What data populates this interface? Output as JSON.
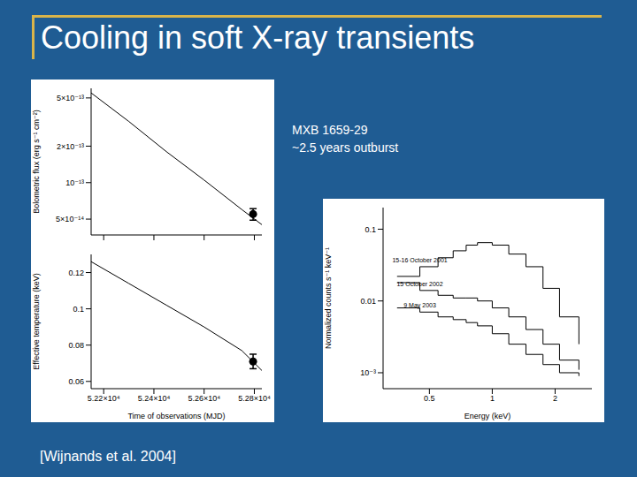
{
  "title": "Cooling in soft X-ray transients",
  "annotations": [
    "MXB 1659-29",
    "~2.5 years outburst"
  ],
  "source": "[Wijnands et al. 2004]",
  "chart_data": [
    {
      "type": "line",
      "y_label": "Bolometric flux (erg s⁻¹ cm⁻²)",
      "log": "y",
      "tick_labels": "y",
      "grid": false,
      "xlim": [
        52150,
        52830
      ],
      "xticks": [
        {
          "value": 52200,
          "label": "5.22×10⁴"
        },
        {
          "value": 52400,
          "label": "5.24×10⁴"
        },
        {
          "value": 52600,
          "label": "5.26×10⁴"
        },
        {
          "value": 52800,
          "label": "5.28×10⁴"
        }
      ],
      "ylim": [
        3.7e-14,
        6e-13
      ],
      "yticks": [
        {
          "value": 5e-14,
          "label": "5×10⁻¹⁴"
        },
        {
          "value": 1e-13,
          "label": "10⁻¹³"
        },
        {
          "value": 2e-13,
          "label": "2×10⁻¹³"
        },
        {
          "value": 5e-13,
          "label": "5×10⁻¹³"
        }
      ],
      "series": [
        {
          "type": "line",
          "color": "#000000",
          "x": [
            52150,
            52300,
            52450,
            52600,
            52750,
            52830
          ],
          "values": [
            5.5e-13,
            3.2e-13,
            1.8e-13,
            1.05e-13,
            6e-14,
            4.5e-14
          ]
        },
        {
          "type": "scatter",
          "color": "#000000",
          "x": [
            52795
          ],
          "values": [
            5.5e-14
          ],
          "errors": [
            6e-15
          ]
        }
      ]
    },
    {
      "type": "line",
      "y_label": "Effective temperature (keV)",
      "x_label": "Time of observations (MJD)",
      "grid": false,
      "xlim": [
        52150,
        52830
      ],
      "xticks": [
        {
          "value": 52200,
          "label": "5.22×10⁴"
        },
        {
          "value": 52400,
          "label": "5.24×10⁴"
        },
        {
          "value": 52600,
          "label": "5.26×10⁴"
        },
        {
          "value": 52800,
          "label": "5.28×10⁴"
        }
      ],
      "ylim": [
        0.056,
        0.13
      ],
      "yticks": [
        0.06,
        0.08,
        0.1,
        0.12
      ],
      "series": [
        {
          "type": "line",
          "color": "#000000",
          "x": [
            52150,
            52300,
            52450,
            52600,
            52750,
            52830
          ],
          "values": [
            0.126,
            0.114,
            0.102,
            0.09,
            0.077,
            0.066
          ]
        },
        {
          "type": "scatter",
          "color": "#000000",
          "x": [
            52795
          ],
          "values": [
            0.071
          ],
          "errors": [
            0.004
          ]
        }
      ]
    },
    {
      "type": "line",
      "y_label": "Normalized counts s⁻¹ keV⁻¹",
      "x_label": "Energy (keV)",
      "log": true,
      "grid": false,
      "xlim": [
        0.3,
        3
      ],
      "xticks": [
        0.5,
        1,
        2
      ],
      "ylim": [
        0.0006,
        0.2
      ],
      "yticks": [
        {
          "value": 0.001,
          "label": "10⁻³"
        },
        0.01,
        0.1
      ],
      "series": [
        {
          "name": "15-16 October 2001",
          "type": "line",
          "line_style": "step",
          "color": "#000000",
          "x": [
            0.35,
            0.45,
            0.55,
            0.65,
            0.75,
            0.85,
            1.0,
            1.2,
            1.45,
            1.75,
            2.1,
            2.6
          ],
          "values": [
            0.022,
            0.03,
            0.04,
            0.05,
            0.06,
            0.065,
            0.06,
            0.045,
            0.03,
            0.015,
            0.006,
            0.0025
          ]
        },
        {
          "name": "15 October 2002",
          "type": "line",
          "line_style": "step",
          "color": "#000000",
          "x": [
            0.35,
            0.45,
            0.55,
            0.65,
            0.75,
            0.85,
            1.0,
            1.2,
            1.45,
            1.75,
            2.1,
            2.6
          ],
          "values": [
            0.018,
            0.014,
            0.012,
            0.011,
            0.011,
            0.01,
            0.008,
            0.006,
            0.004,
            0.0025,
            0.0015,
            0.0011
          ]
        },
        {
          "name": "9 May 2003",
          "type": "line",
          "line_style": "step",
          "color": "#000000",
          "x": [
            0.35,
            0.45,
            0.55,
            0.65,
            0.75,
            0.85,
            1.0,
            1.2,
            1.45,
            1.75,
            2.1,
            2.6
          ],
          "values": [
            0.008,
            0.007,
            0.006,
            0.0055,
            0.005,
            0.0045,
            0.0035,
            0.0025,
            0.0018,
            0.0013,
            0.001,
            0.0009
          ]
        }
      ]
    }
  ]
}
